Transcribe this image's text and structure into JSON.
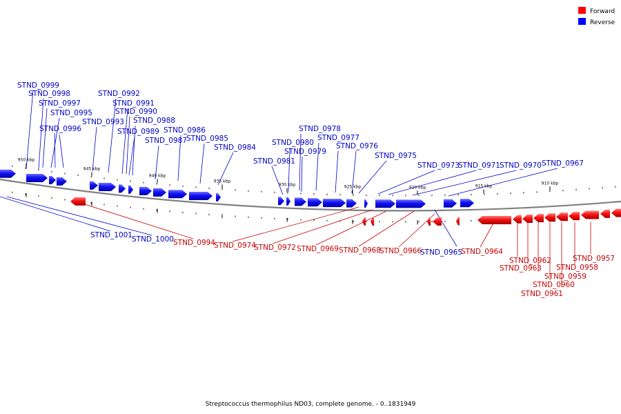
{
  "title": "Streptococcus thermophilus ND03, complete genome. - 0..1831949",
  "legend": [
    {
      "label": "Forward",
      "color": "#ff0000"
    },
    {
      "label": "Reverse",
      "color": "#0000ff"
    }
  ],
  "colors": {
    "forward": "#ff0000",
    "reverse": "#0000ff",
    "backbone": "#808080"
  },
  "ticks": [
    {
      "label": "950 kbp",
      "kbp": 950
    },
    {
      "label": "945 kbp",
      "kbp": 945
    },
    {
      "label": "940 kbp",
      "kbp": 940
    },
    {
      "label": "935 kbp",
      "kbp": 935
    },
    {
      "label": "930 kbp",
      "kbp": 930
    },
    {
      "label": "925 kbp",
      "kbp": 925
    },
    {
      "label": "920 kbp",
      "kbp": 920
    },
    {
      "label": "915 kbp",
      "kbp": 915
    },
    {
      "label": "910 kbp",
      "kbp": 910
    }
  ],
  "genes_reverse": [
    {
      "name": "STND_0999"
    },
    {
      "name": "STND_0998"
    },
    {
      "name": "STND_0997"
    },
    {
      "name": "STND_0995"
    },
    {
      "name": "STND_0996"
    },
    {
      "name": "STND_0992"
    },
    {
      "name": "STND_0991"
    },
    {
      "name": "STND_0990"
    },
    {
      "name": "STND_0993"
    },
    {
      "name": "STND_0988"
    },
    {
      "name": "STND_0989"
    },
    {
      "name": "STND_0986"
    },
    {
      "name": "STND_0987"
    },
    {
      "name": "STND_0985"
    },
    {
      "name": "STND_0984"
    },
    {
      "name": "STND_0978"
    },
    {
      "name": "STND_0977"
    },
    {
      "name": "STND_0980"
    },
    {
      "name": "STND_0979"
    },
    {
      "name": "STND_0976"
    },
    {
      "name": "STND_0981"
    },
    {
      "name": "STND_0975"
    },
    {
      "name": "STND_0973"
    },
    {
      "name": "STND_0971"
    },
    {
      "name": "STND_0970"
    },
    {
      "name": "STND_0967"
    },
    {
      "name": "STND_1001"
    },
    {
      "name": "STND_1000"
    },
    {
      "name": "STND_0965"
    }
  ],
  "genes_forward": [
    {
      "name": "STND_0994"
    },
    {
      "name": "STND_0974"
    },
    {
      "name": "STND_0972"
    },
    {
      "name": "STND_0969"
    },
    {
      "name": "STND_0968"
    },
    {
      "name": "STND_0966"
    },
    {
      "name": "STND_0964"
    },
    {
      "name": "STND_0957"
    },
    {
      "name": "STND_0962"
    },
    {
      "name": "STND_0963"
    },
    {
      "name": "STND_0958"
    },
    {
      "name": "STND_0959"
    },
    {
      "name": "STND_0960"
    },
    {
      "name": "STND_0961"
    }
  ]
}
